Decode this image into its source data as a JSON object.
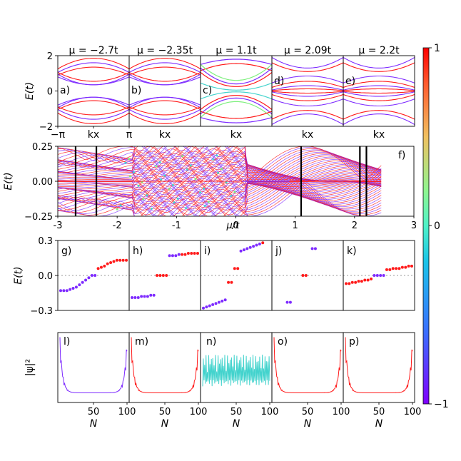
{
  "colors": {
    "violet": "#7e2bff",
    "red": "#ff1a1a",
    "cyan": "#43d3cd",
    "yellow": "#f2c94c",
    "green": "#7ef07e"
  },
  "chart_data": [
    {
      "type": "line",
      "id": "band-panels",
      "ylabel": "E(t)",
      "ylim": [
        -2,
        2
      ],
      "yticks": [
        "2",
        "0",
        "−2"
      ],
      "panels": [
        {
          "label": "a)",
          "title": "μ = −2.7t",
          "xticks": [
            "−π",
            "kx",
            "π"
          ],
          "style": "parabolic"
        },
        {
          "label": "b)",
          "title": "μ = −2.35t",
          "xticks": [
            "kx"
          ],
          "style": "parabolic"
        },
        {
          "label": "c)",
          "title": "μ = 1.1t",
          "xticks": [
            "kx"
          ],
          "style": "colored"
        },
        {
          "label": "d)",
          "title": "μ = 2.09t",
          "xticks": [
            "kx"
          ],
          "style": "flat"
        },
        {
          "label": "e)",
          "title": "μ = 2.2t",
          "xticks": [
            "kx"
          ],
          "style": "flat"
        }
      ]
    },
    {
      "type": "scatter",
      "id": "spectrum",
      "label": "f)",
      "xlabel": "μ/t",
      "ylabel": "E(t)",
      "xlim": [
        -3,
        3
      ],
      "ylim": [
        -0.25,
        0.25
      ],
      "xticks": [
        "-3",
        "-2",
        "-1",
        "0",
        "1",
        "2",
        "3"
      ],
      "yticks": [
        "0.25",
        "0.00",
        "−0.25"
      ],
      "vlines": [
        -2.7,
        -2.35,
        1.1,
        2.09,
        2.2
      ]
    },
    {
      "type": "scatter",
      "id": "energy-levels",
      "ylabel": "E(t)",
      "ylim": [
        -0.3,
        0.3
      ],
      "yticks": [
        "0.3",
        "0.0",
        "−0.3"
      ],
      "panels": [
        {
          "label": "g)",
          "points": [
            [
              0,
              -0.13,
              "v"
            ],
            [
              1,
              -0.13,
              "v"
            ],
            [
              2,
              -0.13,
              "v"
            ],
            [
              3,
              -0.12,
              "v"
            ],
            [
              4,
              -0.11,
              "v"
            ],
            [
              5,
              -0.1,
              "v"
            ],
            [
              6,
              -0.08,
              "v"
            ],
            [
              7,
              -0.06,
              "v"
            ],
            [
              8,
              -0.04,
              "v"
            ],
            [
              9,
              -0.02,
              "v"
            ],
            [
              10,
              0,
              "v"
            ],
            [
              11,
              0,
              "v"
            ],
            [
              12,
              0.06,
              "r"
            ],
            [
              13,
              0.07,
              "r"
            ],
            [
              14,
              0.08,
              "r"
            ],
            [
              15,
              0.1,
              "r"
            ],
            [
              16,
              0.11,
              "r"
            ],
            [
              17,
              0.12,
              "r"
            ],
            [
              18,
              0.13,
              "r"
            ],
            [
              19,
              0.13,
              "r"
            ],
            [
              20,
              0.13,
              "r"
            ],
            [
              21,
              0.13,
              "r"
            ]
          ]
        },
        {
          "label": "h)",
          "points": [
            [
              0,
              -0.19,
              "v"
            ],
            [
              1,
              -0.19,
              "v"
            ],
            [
              2,
              -0.19,
              "v"
            ],
            [
              3,
              -0.18,
              "v"
            ],
            [
              4,
              -0.18,
              "v"
            ],
            [
              5,
              -0.18,
              "v"
            ],
            [
              6,
              -0.17,
              "v"
            ],
            [
              7,
              -0.17,
              "v"
            ],
            [
              8,
              0,
              "r"
            ],
            [
              9,
              0,
              "r"
            ],
            [
              10,
              0,
              "r"
            ],
            [
              11,
              0,
              "r"
            ],
            [
              12,
              0.17,
              "v"
            ],
            [
              13,
              0.17,
              "v"
            ],
            [
              14,
              0.17,
              "v"
            ],
            [
              15,
              0.18,
              "v"
            ],
            [
              16,
              0.18,
              "r"
            ],
            [
              17,
              0.18,
              "r"
            ],
            [
              18,
              0.19,
              "r"
            ],
            [
              19,
              0.19,
              "r"
            ],
            [
              20,
              0.19,
              "r"
            ],
            [
              21,
              0.19,
              "r"
            ]
          ]
        },
        {
          "label": "i)",
          "points": [
            [
              0,
              -0.28,
              "v"
            ],
            [
              1,
              -0.27,
              "v"
            ],
            [
              2,
              -0.26,
              "v"
            ],
            [
              3,
              -0.25,
              "v"
            ],
            [
              4,
              -0.24,
              "v"
            ],
            [
              5,
              -0.23,
              "v"
            ],
            [
              6,
              -0.22,
              "v"
            ],
            [
              7,
              -0.21,
              "v"
            ],
            [
              8,
              -0.06,
              "r"
            ],
            [
              9,
              -0.06,
              "r"
            ],
            [
              10,
              0.06,
              "r"
            ],
            [
              11,
              0.06,
              "r"
            ],
            [
              12,
              0.21,
              "v"
            ],
            [
              13,
              0.22,
              "v"
            ],
            [
              14,
              0.23,
              "v"
            ],
            [
              15,
              0.24,
              "v"
            ],
            [
              16,
              0.25,
              "v"
            ],
            [
              17,
              0.26,
              "v"
            ],
            [
              18,
              0.27,
              "v"
            ],
            [
              19,
              0.28,
              "r"
            ]
          ]
        },
        {
          "label": "j)",
          "points": [
            [
              4,
              -0.23,
              "v"
            ],
            [
              5,
              -0.23,
              "v"
            ],
            [
              9,
              0,
              "r"
            ],
            [
              10,
              0,
              "r"
            ],
            [
              12,
              0.23,
              "v"
            ],
            [
              13,
              0.23,
              "v"
            ]
          ]
        },
        {
          "label": "k)",
          "points": [
            [
              0,
              -0.07,
              "r"
            ],
            [
              1,
              -0.07,
              "r"
            ],
            [
              2,
              -0.06,
              "r"
            ],
            [
              3,
              -0.06,
              "r"
            ],
            [
              4,
              -0.05,
              "r"
            ],
            [
              5,
              -0.05,
              "r"
            ],
            [
              6,
              -0.04,
              "r"
            ],
            [
              7,
              -0.04,
              "r"
            ],
            [
              8,
              -0.03,
              "r"
            ],
            [
              9,
              0,
              "v"
            ],
            [
              10,
              0,
              "v"
            ],
            [
              11,
              0,
              "v"
            ],
            [
              12,
              0,
              "v"
            ],
            [
              13,
              0.05,
              "r"
            ],
            [
              14,
              0.05,
              "r"
            ],
            [
              15,
              0.06,
              "r"
            ],
            [
              16,
              0.06,
              "r"
            ],
            [
              17,
              0.06,
              "r"
            ],
            [
              18,
              0.07,
              "r"
            ],
            [
              19,
              0.07,
              "r"
            ],
            [
              20,
              0.08,
              "r"
            ],
            [
              21,
              0.08,
              "r"
            ]
          ]
        }
      ]
    },
    {
      "type": "line",
      "id": "wavefunctions",
      "ylabel": "|ψ|²",
      "xlabel": "N",
      "xticks": [
        "50",
        "100"
      ],
      "panels": [
        {
          "label": "l)",
          "color": "#7e2bff",
          "style": "edge"
        },
        {
          "label": "m)",
          "color": "#ff1a1a",
          "style": "edge"
        },
        {
          "label": "n)",
          "color": "#43d3cd",
          "style": "bulk"
        },
        {
          "label": "o)",
          "color": "#ff1a1a",
          "style": "edge"
        },
        {
          "label": "p)",
          "color": "#ff1a1a",
          "style": "edge"
        }
      ]
    },
    {
      "type": "heatmap",
      "id": "colorbar",
      "range": [
        -1,
        1
      ],
      "ticks": [
        "1",
        "0",
        "−1"
      ]
    }
  ]
}
